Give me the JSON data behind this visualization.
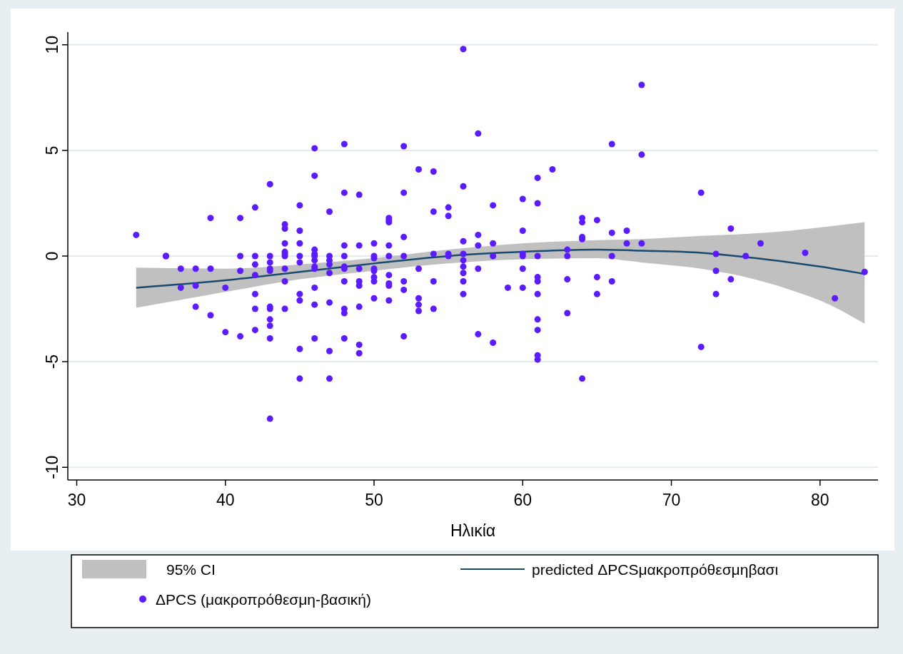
{
  "chart_data": {
    "type": "scatter",
    "xlabel": "Ηλικία",
    "xlim": [
      29.4,
      83.9
    ],
    "ylim": [
      -10.6,
      10.6
    ],
    "xticks": [
      30,
      40,
      50,
      60,
      70,
      80
    ],
    "yticks": [
      -10,
      -5,
      0,
      5,
      10
    ],
    "grid": "y",
    "legend": "bottom",
    "marker": "circle",
    "annotations": [
      "95% CI"
    ],
    "series": [
      {
        "type": "line",
        "name": "predicted ΔPCSμακροπρόθεσμηβασι",
        "color": "#1a4a6e",
        "line_style": "solid",
        "marker": "none",
        "x": [
          34,
          40,
          45,
          50,
          55,
          60,
          65,
          68,
          72,
          75,
          78,
          80,
          83
        ],
        "values": [
          -1.5,
          -1.15,
          -0.75,
          -0.35,
          0,
          0.2,
          0.3,
          0.25,
          0.15,
          -0.05,
          -0.3,
          -0.5,
          -0.85
        ],
        "lower": [
          -2.45,
          -1.7,
          -1.1,
          -0.7,
          -0.35,
          -0.15,
          -0.1,
          -0.3,
          -0.6,
          -1.0,
          -1.6,
          -2.1,
          -3.2
        ],
        "upper": [
          -0.55,
          -0.6,
          -0.4,
          -0.1,
          0.3,
          0.6,
          0.75,
          0.8,
          0.95,
          1.05,
          1.2,
          1.35,
          1.6
        ]
      },
      {
        "type": "scatter",
        "name": "ΔPCS (μακροπρόθεσμη-βασική)",
        "color": "#5a1cff",
        "x": [
          34,
          36,
          36,
          37,
          37,
          38,
          38,
          38,
          39,
          39,
          39,
          40,
          40,
          41,
          41,
          41,
          41,
          42,
          42,
          42,
          42,
          42,
          42,
          42,
          43,
          43,
          43,
          43,
          43,
          43,
          43,
          43,
          43,
          43,
          43,
          44,
          44,
          44,
          44,
          44,
          44,
          44,
          44,
          44,
          45,
          45,
          45,
          45,
          45,
          45,
          45,
          45,
          45,
          46,
          46,
          46,
          46,
          46,
          46,
          46,
          46,
          46,
          46,
          46,
          47,
          47,
          47,
          47,
          47,
          47,
          47,
          47,
          48,
          48,
          48,
          48,
          48,
          48,
          48,
          48,
          48,
          48,
          49,
          49,
          49,
          49,
          49,
          49,
          49,
          49,
          50,
          50,
          50,
          50,
          50,
          50,
          50,
          50,
          51,
          51,
          51,
          51,
          51,
          51,
          51,
          51,
          51,
          52,
          52,
          52,
          52,
          52,
          52,
          52,
          53,
          53,
          53,
          53,
          53,
          54,
          54,
          54,
          54,
          54,
          55,
          55,
          55,
          55,
          56,
          56,
          56,
          56,
          56,
          56,
          56,
          56,
          56,
          57,
          57,
          57,
          57,
          57,
          58,
          58,
          58,
          58,
          59,
          60,
          60,
          60,
          60,
          60,
          60,
          61,
          61,
          61,
          61,
          61,
          61,
          61,
          61,
          61,
          61,
          62,
          63,
          63,
          63,
          63,
          64,
          64,
          64,
          64,
          64,
          65,
          65,
          65,
          66,
          66,
          66,
          66,
          67,
          67,
          68,
          68,
          68,
          72,
          72,
          73,
          73,
          73,
          74,
          74,
          75,
          76,
          79,
          81,
          83
        ],
        "values": [
          1.0,
          0,
          0,
          -0.6,
          -1.5,
          -0.6,
          -1.4,
          -2.4,
          1.8,
          -0.6,
          -2.8,
          -1.5,
          -3.6,
          1.8,
          0,
          -0.7,
          -3.8,
          2.3,
          0,
          -0.4,
          -0.9,
          -1.8,
          -2.5,
          -3.5,
          3.4,
          0,
          -0.3,
          -0.6,
          -0.7,
          -2.4,
          -2.5,
          -3.0,
          -3.3,
          -3.9,
          -7.7,
          1.5,
          1.3,
          0.6,
          0.2,
          0.1,
          0,
          -0.6,
          -1.2,
          -2.5,
          2.4,
          1.2,
          0.6,
          0,
          -0.3,
          -1.8,
          -2.1,
          -4.4,
          -5.8,
          5.1,
          3.8,
          0.3,
          0.1,
          0,
          -0.2,
          -0.5,
          -0.6,
          -1.5,
          -2.3,
          -3.9,
          2.1,
          0,
          -0.2,
          -0.4,
          -0.8,
          -2.2,
          -4.5,
          -5.8,
          5.3,
          3.0,
          0.5,
          0,
          -0.5,
          -0.6,
          -1.2,
          -2.5,
          -2.7,
          -3.9,
          2.9,
          0.5,
          -0.6,
          -1.2,
          -1.4,
          -2.4,
          -4.2,
          -4.6,
          0.6,
          0,
          -0.1,
          -0.6,
          -0.7,
          -1.0,
          -1.2,
          -2.0,
          1.8,
          1.7,
          1.6,
          0.5,
          0,
          -0.9,
          -1.3,
          -1.4,
          -2.1,
          5.2,
          3.0,
          0.9,
          0,
          -1.2,
          -1.6,
          -3.8,
          4.1,
          -0.6,
          -2.0,
          -2.3,
          -2.6,
          4.0,
          2.1,
          0.1,
          -1.2,
          -2.5,
          2.3,
          1.9,
          0.1,
          0,
          9.8,
          3.3,
          0.7,
          0.1,
          -0.2,
          -0.5,
          -0.8,
          -1.2,
          -1.8,
          5.8,
          1.0,
          0.5,
          -0.6,
          -3.7,
          2.4,
          0.6,
          0,
          -4.1,
          -1.5,
          2.7,
          1.2,
          0.1,
          0,
          -0.6,
          -1.5,
          3.7,
          2.5,
          0,
          -1.0,
          -1.2,
          -1.8,
          -3.0,
          -3.5,
          -4.7,
          -4.9,
          4.1,
          0.3,
          0,
          -1.1,
          -2.7,
          1.8,
          1.6,
          0.9,
          0.8,
          -5.8,
          1.7,
          -1.0,
          -1.8,
          5.3,
          1.1,
          0,
          -1.2,
          1.2,
          0.6,
          8.1,
          4.8,
          0.6,
          3.0,
          -4.3,
          0.1,
          -0.7,
          -1.8,
          1.3,
          -1.1,
          0,
          0.6,
          0.15,
          -2.0,
          -0.75
        ]
      }
    ]
  }
}
